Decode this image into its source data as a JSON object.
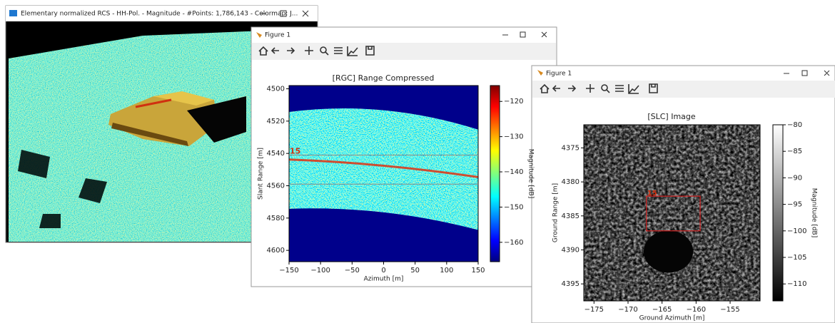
{
  "windows": [
    {
      "title": "Elementary normalized RCS - HH-Pol. - Magnitude - #Points: 1,786,143 - Colormap: J..."
    },
    {
      "title": "Figure 1"
    },
    {
      "title": "Figure 1"
    }
  ],
  "chart_data": [
    {
      "type": "heatmap",
      "title": "[RGC] Range Compressed",
      "x_label": "Azimuth [m]",
      "y_label": "Slant Range [m]",
      "xlim": [
        -150,
        150
      ],
      "xticks": [
        {
          "value": -150,
          "label": "−150"
        },
        {
          "value": -100,
          "label": "−100"
        },
        {
          "value": -50,
          "label": "−50"
        },
        0,
        50,
        100,
        150
      ],
      "ylim": [
        4607,
        4498
      ],
      "yticks": [
        4500,
        4520,
        4540,
        4560,
        4580,
        4600
      ],
      "colormap": "jet",
      "colorbar_label": "Magnitude [dB]",
      "clim": [
        -165.5,
        -115.5
      ],
      "cticks": [
        {
          "value": -120,
          "label": "−120"
        },
        {
          "value": -130,
          "label": "−130"
        },
        {
          "value": -140,
          "label": "−140"
        },
        {
          "value": -150,
          "label": "−150"
        },
        {
          "value": -160,
          "label": "−160"
        }
      ],
      "annotation": "15",
      "hlines": [
        4541,
        4559
      ]
    },
    {
      "type": "heatmap",
      "title": "[SLC] Image",
      "x_label": "Ground Azimuth [m]",
      "y_label": "Ground Range [m]",
      "xlim": [
        -176.5,
        -150.6
      ],
      "xticks": [
        {
          "value": -175,
          "label": "−175"
        },
        {
          "value": -170,
          "label": "−170"
        },
        {
          "value": -165,
          "label": "−165"
        },
        {
          "value": -160,
          "label": "−160"
        },
        {
          "value": -155,
          "label": "−155"
        }
      ],
      "ylim": [
        4397.5,
        4371.6
      ],
      "yticks": [
        4375,
        4380,
        4385,
        4390,
        4395
      ],
      "colormap": "gray",
      "colorbar_label": "Magnitude [dB]",
      "clim": [
        -113.2,
        -80
      ],
      "cticks": [
        {
          "value": -80,
          "label": "−80"
        },
        {
          "value": -85,
          "label": "−85"
        },
        {
          "value": -90,
          "label": "−90"
        },
        {
          "value": -95,
          "label": "−95"
        },
        {
          "value": -100,
          "label": "−100"
        },
        {
          "value": -105,
          "label": "−105"
        },
        {
          "value": -110,
          "label": "−110"
        }
      ],
      "annotation": "15",
      "box": {
        "x": [
          -167.3,
          -159.4
        ],
        "y": [
          4382.1,
          4387.2
        ]
      }
    }
  ]
}
